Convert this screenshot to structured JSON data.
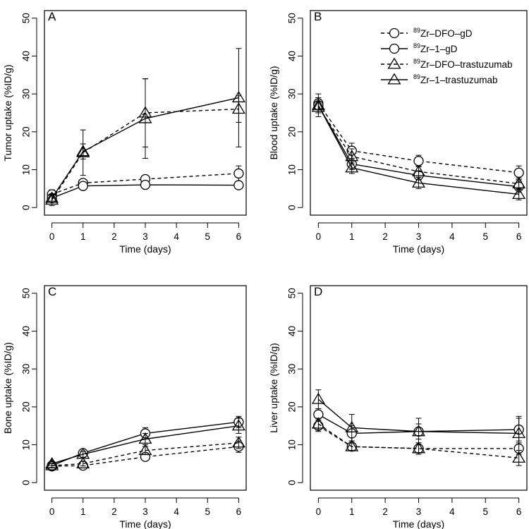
{
  "chart_data": [
    {
      "type": "line",
      "panel_label": "A",
      "xlabel": "Time (days)",
      "ylabel": "Tumor uptake (%ID/g)",
      "xlim": [
        0,
        6
      ],
      "ylim": [
        0,
        50
      ],
      "xticks": [
        0,
        1,
        2,
        3,
        4,
        5,
        6
      ],
      "yticks": [
        0,
        10,
        20,
        30,
        40,
        50
      ],
      "series": [
        {
          "name": "89Zr-DFO-gD",
          "marker": "circle",
          "dash": true,
          "x": [
            0,
            1,
            3,
            6
          ],
          "y": [
            3.5,
            6.5,
            7.5,
            9.0
          ],
          "err": [
            1.2,
            0.8,
            1.0,
            2.0
          ]
        },
        {
          "name": "89Zr-1-gD",
          "marker": "circle",
          "dash": false,
          "x": [
            0,
            1,
            3,
            6
          ],
          "y": [
            2.5,
            5.7,
            6.0,
            5.9
          ],
          "err": [
            0.8,
            0.7,
            0.8,
            1.0
          ]
        },
        {
          "name": "89Zr-DFO-trastuzumab",
          "marker": "triangle",
          "dash": true,
          "x": [
            0,
            1,
            3,
            6
          ],
          "y": [
            2.0,
            14.5,
            25.0,
            26.0
          ],
          "err": [
            1.5,
            6.0,
            9.0,
            3.5
          ]
        },
        {
          "name": "89Zr-1-trastuzumab",
          "marker": "triangle",
          "dash": false,
          "x": [
            0,
            1,
            3,
            6
          ],
          "y": [
            2.5,
            14.8,
            23.5,
            29.0
          ],
          "err": [
            0.8,
            2.0,
            10.5,
            13.0
          ]
        }
      ]
    },
    {
      "type": "line",
      "panel_label": "B",
      "xlabel": "Time (days)",
      "ylabel": "Blood uptake (%ID/g)",
      "xlim": [
        0,
        6
      ],
      "ylim": [
        0,
        50
      ],
      "xticks": [
        0,
        1,
        2,
        3,
        4,
        5,
        6
      ],
      "yticks": [
        0,
        10,
        20,
        30,
        40,
        50
      ],
      "legend": {
        "position": "top-right",
        "entries": [
          {
            "prefix": "89",
            "text": "Zr–DFO–gD",
            "marker": "circle",
            "dash": true
          },
          {
            "prefix": "89",
            "text": "Zr–1–gD",
            "marker": "circle",
            "dash": false
          },
          {
            "prefix": "89",
            "text": "Zr–DFO–trastuzumab",
            "marker": "triangle",
            "dash": true
          },
          {
            "prefix": "89",
            "text": "Zr–1–trastuzumab",
            "marker": "triangle",
            "dash": false
          }
        ]
      },
      "series": [
        {
          "name": "89Zr-DFO-gD",
          "marker": "circle",
          "dash": true,
          "x": [
            0,
            1,
            3,
            6
          ],
          "y": [
            27.5,
            15.0,
            12.3,
            9.2
          ],
          "err": [
            2.5,
            2.0,
            1.5,
            1.8
          ]
        },
        {
          "name": "89Zr-1-gD",
          "marker": "circle",
          "dash": false,
          "x": [
            0,
            1,
            3,
            6
          ],
          "y": [
            27.0,
            11.5,
            8.5,
            5.5
          ],
          "err": [
            2.0,
            1.5,
            1.2,
            1.5
          ]
        },
        {
          "name": "89Zr-DFO-trastuzumab",
          "marker": "triangle",
          "dash": true,
          "x": [
            0,
            1,
            3,
            6
          ],
          "y": [
            26.5,
            13.5,
            9.5,
            6.3
          ],
          "err": [
            2.5,
            2.0,
            1.5,
            1.5
          ]
        },
        {
          "name": "89Zr-1-trastuzumab",
          "marker": "triangle",
          "dash": false,
          "x": [
            0,
            1,
            3,
            6
          ],
          "y": [
            27.0,
            10.5,
            6.5,
            3.5
          ],
          "err": [
            2.0,
            1.5,
            1.5,
            1.5
          ]
        }
      ]
    },
    {
      "type": "line",
      "panel_label": "C",
      "xlabel": "Time (days)",
      "ylabel": "Bone uptake (%ID/g)",
      "xlim": [
        0,
        6
      ],
      "ylim": [
        0,
        50
      ],
      "xticks": [
        0,
        1,
        2,
        3,
        4,
        5,
        6
      ],
      "yticks": [
        0,
        10,
        20,
        30,
        40,
        50
      ],
      "series": [
        {
          "name": "89Zr-DFO-gD",
          "marker": "circle",
          "dash": true,
          "x": [
            0,
            1,
            3,
            6
          ],
          "y": [
            4.3,
            4.5,
            6.8,
            9.5
          ],
          "err": [
            0.5,
            0.5,
            1.0,
            1.5
          ]
        },
        {
          "name": "89Zr-1-gD",
          "marker": "circle",
          "dash": false,
          "x": [
            0,
            1,
            3,
            6
          ],
          "y": [
            4.5,
            7.8,
            13.0,
            16.0
          ],
          "err": [
            0.5,
            0.8,
            1.5,
            1.5
          ]
        },
        {
          "name": "89Zr-DFO-trastuzumab",
          "marker": "triangle",
          "dash": true,
          "x": [
            0,
            1,
            3,
            6
          ],
          "y": [
            4.5,
            5.0,
            8.5,
            10.5
          ],
          "err": [
            0.5,
            0.6,
            1.0,
            1.5
          ]
        },
        {
          "name": "89Zr-1-trastuzumab",
          "marker": "triangle",
          "dash": false,
          "x": [
            0,
            1,
            3,
            6
          ],
          "y": [
            5.0,
            7.5,
            11.5,
            15.0
          ],
          "err": [
            0.5,
            0.8,
            1.5,
            2.0
          ]
        }
      ]
    },
    {
      "type": "line",
      "panel_label": "D",
      "xlabel": "Time (days)",
      "ylabel": "Liver uptake (%ID/g)",
      "xlim": [
        0,
        6
      ],
      "ylim": [
        0,
        50
      ],
      "xticks": [
        0,
        1,
        2,
        3,
        4,
        5,
        6
      ],
      "yticks": [
        0,
        10,
        20,
        30,
        40,
        50
      ],
      "series": [
        {
          "name": "89Zr-DFO-gD",
          "marker": "circle",
          "dash": true,
          "x": [
            0,
            1,
            3,
            6
          ],
          "y": [
            15.0,
            9.5,
            9.0,
            9.0
          ],
          "err": [
            1.5,
            1.0,
            1.5,
            1.5
          ]
        },
        {
          "name": "89Zr-1-gD",
          "marker": "circle",
          "dash": false,
          "x": [
            0,
            1,
            3,
            6
          ],
          "y": [
            18.0,
            13.0,
            13.5,
            14.0
          ],
          "err": [
            1.5,
            2.0,
            2.0,
            3.0
          ]
        },
        {
          "name": "89Zr-DFO-trastuzumab",
          "marker": "triangle",
          "dash": true,
          "x": [
            0,
            1,
            3,
            6
          ],
          "y": [
            15.5,
            9.5,
            9.0,
            6.5
          ],
          "err": [
            1.5,
            1.0,
            1.5,
            2.0
          ]
        },
        {
          "name": "89Zr-1-trastuzumab",
          "marker": "triangle",
          "dash": false,
          "x": [
            0,
            1,
            3,
            6
          ],
          "y": [
            22.0,
            14.5,
            13.5,
            13.0
          ],
          "err": [
            2.5,
            3.5,
            3.5,
            4.5
          ]
        }
      ]
    }
  ]
}
